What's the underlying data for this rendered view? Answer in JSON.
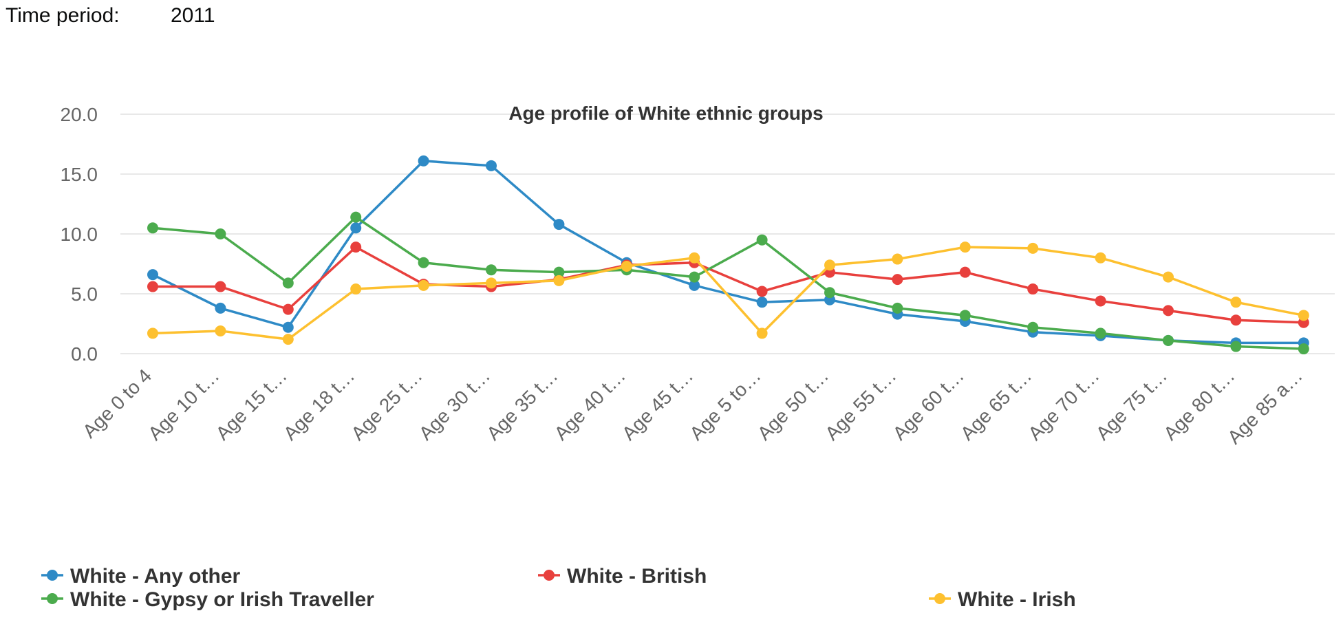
{
  "filter": {
    "label": "Time period:",
    "value": "2011"
  },
  "chart_data": {
    "type": "line",
    "title": "Age profile of White ethnic groups",
    "xlabel": "",
    "ylabel": "",
    "ylim": [
      0,
      20
    ],
    "yticks": [
      "0.0",
      "5.0",
      "10.0",
      "15.0",
      "20.0"
    ],
    "grid": true,
    "legend_position": "bottom",
    "categories": [
      "Age 0 to 4",
      "Age 10 t…",
      "Age 15 t…",
      "Age 18 t…",
      "Age 25 t…",
      "Age 30 t…",
      "Age 35 t…",
      "Age 40 t…",
      "Age 45 t…",
      "Age 5 to…",
      "Age 50 t…",
      "Age 55 t…",
      "Age 60 t…",
      "Age 65 t…",
      "Age 70 t…",
      "Age 75 t…",
      "Age 80 t…",
      "Age 85 a…"
    ],
    "series": [
      {
        "name": "White - Any other",
        "color": "#2e8ac6",
        "values": [
          6.6,
          3.8,
          2.2,
          10.5,
          16.1,
          15.7,
          10.8,
          7.6,
          5.7,
          4.3,
          4.5,
          3.3,
          2.7,
          1.8,
          1.5,
          1.1,
          0.9,
          0.9
        ]
      },
      {
        "name": "White - British",
        "color": "#e8403d",
        "values": [
          5.6,
          5.6,
          3.7,
          8.9,
          5.8,
          5.6,
          6.2,
          7.4,
          7.6,
          5.2,
          6.8,
          6.2,
          6.8,
          5.4,
          4.4,
          3.6,
          2.8,
          2.6
        ]
      },
      {
        "name": "White - Gypsy or Irish Traveller",
        "color": "#4bab4d",
        "values": [
          10.5,
          10.0,
          5.9,
          11.4,
          7.6,
          7.0,
          6.8,
          7.0,
          6.4,
          9.5,
          5.1,
          3.8,
          3.2,
          2.2,
          1.7,
          1.1,
          0.6,
          0.4
        ]
      },
      {
        "name": "White - Irish",
        "color": "#fdc02f",
        "values": [
          1.7,
          1.9,
          1.2,
          5.4,
          5.7,
          5.9,
          6.1,
          7.3,
          8.0,
          1.7,
          7.4,
          7.9,
          8.9,
          8.8,
          8.0,
          6.4,
          4.3,
          3.2
        ]
      }
    ]
  }
}
